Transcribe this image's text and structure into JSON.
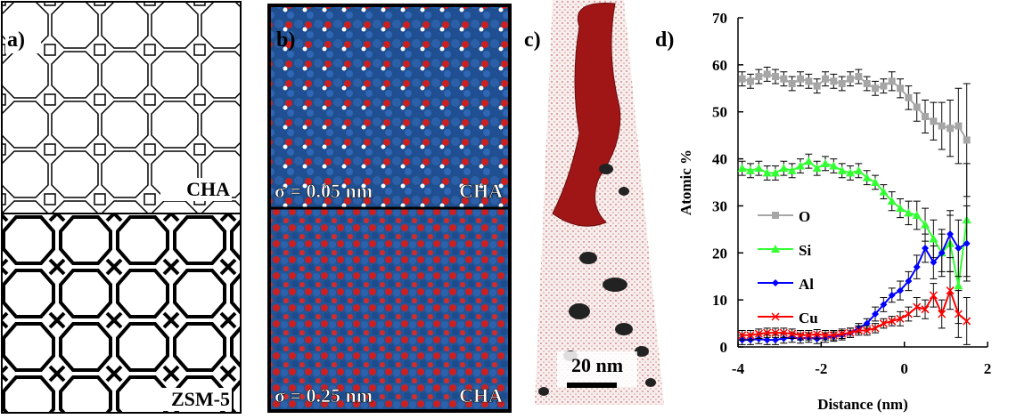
{
  "panels": {
    "a": {
      "label": "a)",
      "top_caption": "CHA",
      "bottom_caption": "ZSM-5"
    },
    "b": {
      "label": "b)",
      "top_sigma": "σ = 0.05 nm",
      "top_caption": "CHA",
      "bottom_sigma": "σ = 0.25 nm",
      "bottom_caption": "CHA"
    },
    "c": {
      "label": "c)",
      "scale_bar": "20 nm"
    },
    "d": {
      "label": "d)"
    }
  },
  "chart_data": {
    "type": "line",
    "x_label": "Distance (nm)",
    "y_label": "Atomic %",
    "xlim": [
      -4,
      2
    ],
    "xticks": [
      -4,
      -2,
      0,
      2
    ],
    "ylim": [
      0,
      70
    ],
    "yticks": [
      0,
      10,
      20,
      30,
      40,
      50,
      60,
      70
    ],
    "legend": "center-left",
    "x": [
      -3.9,
      -3.7,
      -3.5,
      -3.3,
      -3.1,
      -2.9,
      -2.7,
      -2.5,
      -2.3,
      -2.1,
      -1.9,
      -1.7,
      -1.5,
      -1.3,
      -1.1,
      -0.9,
      -0.7,
      -0.5,
      -0.3,
      -0.1,
      0.1,
      0.3,
      0.5,
      0.7,
      0.9,
      1.1,
      1.3,
      1.5
    ],
    "series": [
      {
        "name": "O",
        "color": "#a6a6a6",
        "marker": "square",
        "values": [
          57,
          56.5,
          57.5,
          58,
          57.5,
          57,
          56,
          57,
          56.5,
          55.5,
          57,
          56.5,
          56,
          57,
          57.5,
          56,
          55,
          55.5,
          56.5,
          55,
          53,
          51,
          49,
          48,
          47,
          46.5,
          47,
          44
        ],
        "errors": [
          1.5,
          1.5,
          1.5,
          1.5,
          1.5,
          1.5,
          1.5,
          1.5,
          1.5,
          1.5,
          1.5,
          1.5,
          1.5,
          1.5,
          1.5,
          1.5,
          1.5,
          1.5,
          2,
          2,
          2.5,
          3,
          3.5,
          4,
          5,
          6,
          8,
          12
        ]
      },
      {
        "name": "Si",
        "color": "#33ff33",
        "marker": "triangle",
        "values": [
          38,
          37.5,
          38,
          37,
          37,
          38,
          37.5,
          38.5,
          39.5,
          38,
          39,
          38.5,
          37.5,
          37,
          37.5,
          36,
          35,
          33,
          31,
          29.5,
          28.5,
          28,
          26,
          23,
          20,
          22,
          13,
          27
        ],
        "errors": [
          1.5,
          1.5,
          1.5,
          1.5,
          1.5,
          1.5,
          1.5,
          1.5,
          1.5,
          1.5,
          1.5,
          1.5,
          1.5,
          1.5,
          1.5,
          1.5,
          1.5,
          1.5,
          2,
          2,
          2.5,
          3,
          3.5,
          4,
          5,
          6,
          8,
          12
        ]
      },
      {
        "name": "Al",
        "color": "#0000ff",
        "marker": "diamond",
        "values": [
          1.5,
          1.5,
          1.7,
          1.5,
          1.5,
          1.8,
          2,
          1.8,
          2,
          1.7,
          2,
          2.2,
          2.5,
          3,
          4,
          5,
          7,
          9,
          11,
          12,
          14,
          17,
          21,
          18,
          20,
          24,
          21,
          22
        ],
        "errors": [
          1,
          1,
          1,
          1,
          1,
          1,
          1,
          1,
          1,
          1,
          1,
          1,
          1,
          1,
          1,
          1,
          1.5,
          1.5,
          1.5,
          2,
          2,
          2.5,
          3,
          3.5,
          4,
          5,
          6,
          8
        ]
      },
      {
        "name": "Cu",
        "color": "#ff0000",
        "marker": "x",
        "values": [
          2.5,
          2.5,
          2.8,
          3,
          3,
          3,
          2.8,
          2.5,
          2.5,
          2.7,
          2.5,
          2.5,
          2.8,
          3,
          3.5,
          3.5,
          4,
          5,
          5.5,
          6,
          7,
          8.5,
          8,
          11,
          7,
          12,
          7,
          5.5
        ],
        "errors": [
          1,
          1,
          1,
          1,
          1,
          1,
          1,
          1,
          1,
          1,
          1,
          1,
          1,
          1,
          1,
          1,
          1,
          1,
          1,
          1.5,
          1.5,
          2,
          2,
          2.5,
          3,
          4,
          5,
          5
        ]
      }
    ]
  }
}
